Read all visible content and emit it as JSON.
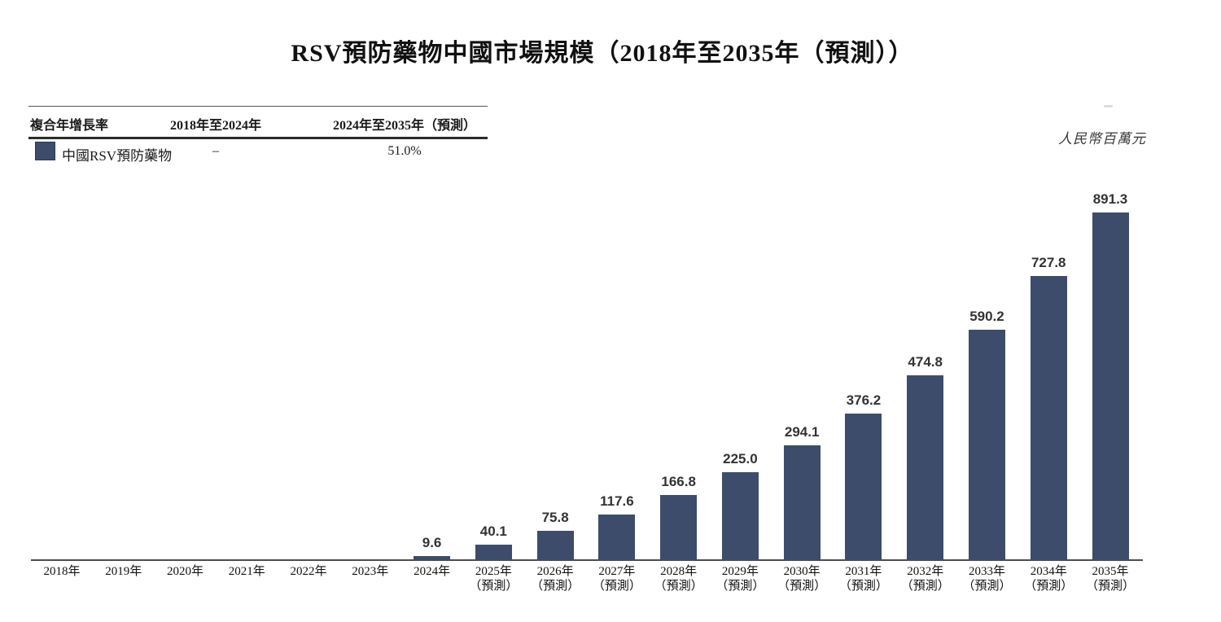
{
  "title": "RSV預防藥物中國市場規模（2018年至2035年（預測））",
  "unit_label": "人民幣百萬元",
  "cagr_table": {
    "headers": {
      "metric": "複合年增長率",
      "period1": "2018年至2024年",
      "period2": "2024年至2035年（預測）"
    },
    "row": {
      "label": "中國RSV預防藥物",
      "swatch_color": "#3d4c6b",
      "period1_value": "–",
      "period2_value": "51.0%"
    }
  },
  "chart_data": {
    "type": "bar",
    "title": "RSV預防藥物中國市場規模（2018年至2035年（預測））",
    "ylabel": "人民幣百萬元",
    "categories": [
      "2018年",
      "2019年",
      "2020年",
      "2021年",
      "2022年",
      "2023年",
      "2024年",
      "2025年",
      "2026年",
      "2027年",
      "2028年",
      "2029年",
      "2030年",
      "2031年",
      "2032年",
      "2033年",
      "2034年",
      "2035年"
    ],
    "forecast_sublabel": "（預測）",
    "forecast_from_index": 7,
    "series": [
      {
        "name": "中國RSV預防藥物",
        "values": [
          0,
          0,
          0,
          0,
          0,
          0,
          9.6,
          40.1,
          75.8,
          117.6,
          166.8,
          225.0,
          294.1,
          376.2,
          474.8,
          590.2,
          727.8,
          891.3
        ]
      }
    ],
    "value_labels": [
      "",
      "",
      "",
      "",
      "",
      "",
      "9.6",
      "40.1",
      "75.8",
      "117.6",
      "166.8",
      "225.0",
      "294.1",
      "376.2",
      "474.8",
      "590.2",
      "727.8",
      "891.3"
    ],
    "bar_color": "#3d4c6b",
    "ylim": [
      0,
      950
    ],
    "grid": false,
    "legend_position": "top-left-table"
  }
}
